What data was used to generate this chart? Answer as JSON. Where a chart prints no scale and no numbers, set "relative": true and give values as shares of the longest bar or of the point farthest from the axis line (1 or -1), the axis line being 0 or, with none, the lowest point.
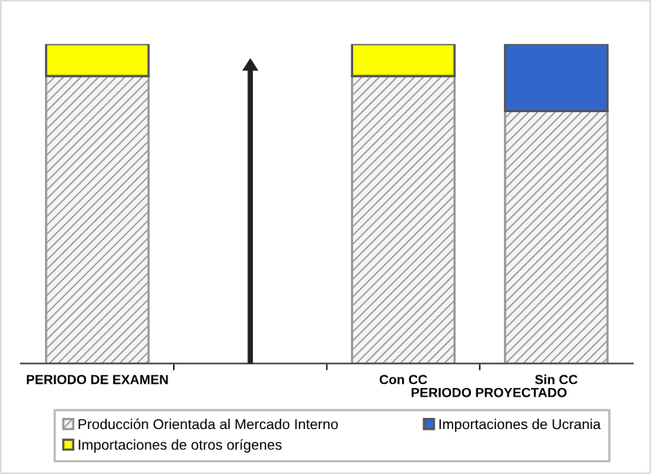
{
  "chart_data": {
    "type": "bar",
    "stacked": true,
    "relative": true,
    "categories": [
      "PERIODO DE EXAMEN",
      null,
      "Con CC",
      "Sin CC"
    ],
    "xlabel": "PERIODO PROYECTADO",
    "series": [
      {
        "name": "Producción Orientada al Mercado Interno",
        "color": "#999999",
        "values": [
          0.9,
          null,
          0.9,
          0.79
        ]
      },
      {
        "name": "Importaciones de Ucrania",
        "color": "#3366cc",
        "values": [
          null,
          null,
          null,
          0.21
        ]
      },
      {
        "name": "Importaciones de otros orígenes",
        "color": "#ffff00",
        "values": [
          0.1,
          null,
          0.1,
          null
        ]
      }
    ],
    "legend": "bottom",
    "grid": false
  }
}
